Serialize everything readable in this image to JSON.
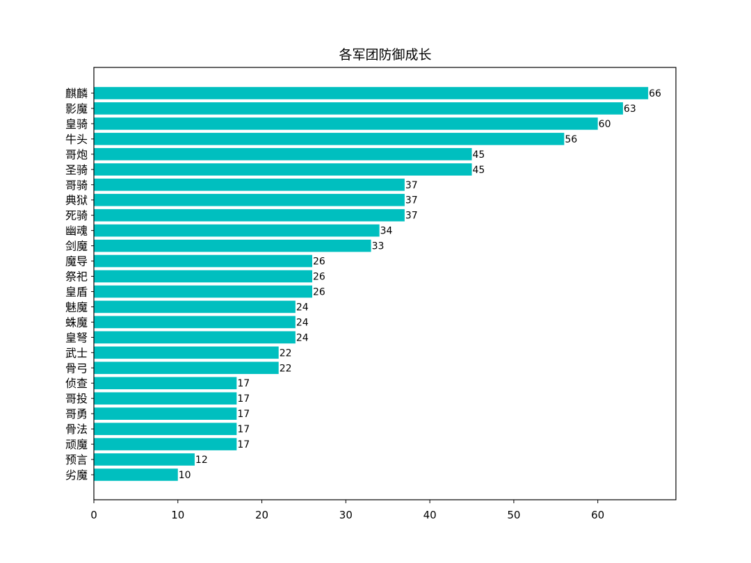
{
  "chart_data": {
    "type": "bar",
    "orientation": "horizontal",
    "title": "各军团防御成长",
    "xlabel": "",
    "ylabel": "",
    "xlim": [
      0,
      69.3
    ],
    "xticks": [
      0,
      10,
      20,
      30,
      40,
      50,
      60
    ],
    "grid": false,
    "bar_color": "#00bfbf",
    "categories": [
      "麒麟",
      "影魔",
      "皇骑",
      "牛头",
      "哥炮",
      "圣骑",
      "哥骑",
      "典狱",
      "死骑",
      "幽魂",
      "剑魔",
      "魔导",
      "祭祀",
      "皇盾",
      "魅魔",
      "蛛魔",
      "皇弩",
      "武士",
      "骨弓",
      "侦查",
      "哥投",
      "哥勇",
      "骨法",
      "顽魔",
      "预言",
      "劣魔"
    ],
    "values": [
      66,
      63,
      60,
      56,
      45,
      45,
      37,
      37,
      37,
      34,
      33,
      26,
      26,
      26,
      24,
      24,
      24,
      22,
      22,
      17,
      17,
      17,
      17,
      17,
      12,
      10
    ]
  }
}
